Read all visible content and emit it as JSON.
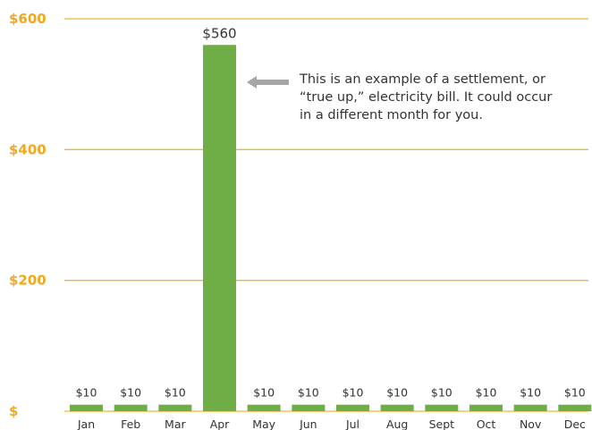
{
  "chart_data": {
    "type": "bar",
    "categories": [
      "Jan",
      "Feb",
      "Mar",
      "Apr",
      "May",
      "Jun",
      "Jul",
      "Aug",
      "Sept",
      "Oct",
      "Nov",
      "Dec"
    ],
    "values": [
      10,
      10,
      10,
      560,
      10,
      10,
      10,
      10,
      10,
      10,
      10,
      10
    ],
    "data_labels": [
      "$10",
      "$10",
      "$10",
      "$560",
      "$10",
      "$10",
      "$10",
      "$10",
      "$10",
      "$10",
      "$10",
      "$10"
    ],
    "ylim": [
      0,
      600
    ],
    "yticks": [
      0,
      200,
      400,
      600
    ],
    "ytick_labels": [
      "$",
      "$200",
      "$400",
      "$600"
    ],
    "grid": true,
    "annotation": {
      "lines": [
        "This is an example of a settlement, or",
        "“true up,” electricity bill. It could occur",
        "in a different month for you."
      ],
      "target": "Apr"
    },
    "colors": {
      "bar": "#6fad47",
      "grid": "#f2b632",
      "tick_label": "#f2a81e",
      "arrow": "#a6a6a6"
    }
  }
}
